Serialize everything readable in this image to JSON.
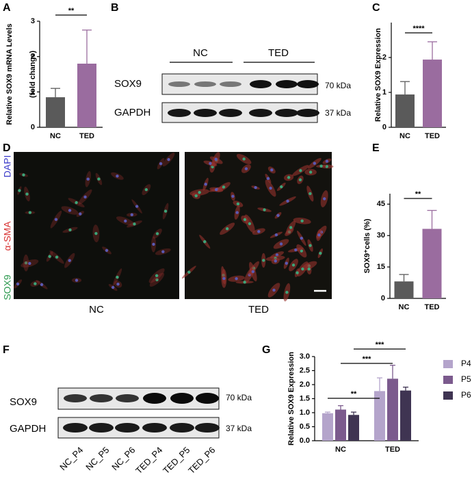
{
  "chart_data": [
    {
      "type": "bar",
      "ylabel": [
        "Relative SOX9 mRNA Levels",
        "(fold change)"
      ],
      "categories": [
        "NC",
        "TED"
      ],
      "values": [
        0.85,
        1.8
      ],
      "errors": [
        0.25,
        0.95
      ],
      "colors": [
        "#5a5a5a",
        "#9a6c9f"
      ],
      "ylim": [
        0,
        3
      ],
      "yticks": [
        0,
        1,
        2,
        3
      ],
      "significance": [
        "**"
      ]
    },
    {
      "type": "bar",
      "ylabel": [
        "Relative SOX9 Expression"
      ],
      "categories": [
        "NC",
        "TED"
      ],
      "values": [
        0.94,
        1.94
      ],
      "errors": [
        0.37,
        0.51
      ],
      "colors": [
        "#5a5a5a",
        "#9a6c9f"
      ],
      "ylim": [
        0,
        3
      ],
      "yticks": [
        0,
        1,
        2
      ],
      "significance": [
        "****"
      ]
    },
    {
      "type": "bar",
      "ylabel": [
        "SOX9⁺cells (%)"
      ],
      "categories": [
        "NC",
        "TED"
      ],
      "values": [
        8.1,
        33.2
      ],
      "errors": [
        3.3,
        8.8
      ],
      "colors": [
        "#5a5a5a",
        "#9a6c9f"
      ],
      "ylim": [
        0,
        50
      ],
      "yticks": [
        0,
        15,
        30,
        45
      ],
      "significance": [
        "**"
      ]
    },
    {
      "type": "grouped-bar",
      "ylabel": [
        "Relative SOX9 Expression"
      ],
      "categories": [
        "NC",
        "TED"
      ],
      "series": [
        {
          "name": "P4",
          "color": "#b4a4cb",
          "values": [
            0.98,
            1.77
          ],
          "errors": [
            0.04,
            0.47
          ]
        },
        {
          "name": "P5",
          "color": "#7b5a8d",
          "values": [
            1.11,
            2.21
          ],
          "errors": [
            0.14,
            0.48
          ]
        },
        {
          "name": "P6",
          "color": "#3f3452",
          "values": [
            0.92,
            1.79
          ],
          "errors": [
            0.1,
            0.12
          ]
        }
      ],
      "ylim": [
        0,
        3
      ],
      "yticks": [
        {
          "value": 0,
          "label": "0.0"
        },
        {
          "value": 0.5,
          "label": "0.5"
        },
        {
          "value": 1,
          "label": "1.0"
        },
        {
          "value": 1.5,
          "label": "1.5"
        },
        {
          "value": 2,
          "label": "2.0"
        },
        {
          "value": 2.5,
          "label": "2.5"
        },
        {
          "value": 3,
          "label": "3.0"
        }
      ],
      "significance": [
        "**",
        "***",
        "***"
      ]
    }
  ],
  "panels": {
    "letters": [
      "A",
      "B",
      "C",
      "D",
      "E",
      "F",
      "G"
    ],
    "blot_b": {
      "groups": [
        "NC",
        "TED"
      ],
      "rows": [
        "SOX9",
        "GAPDH"
      ],
      "sizes": [
        "70 kDa",
        "37 kDa"
      ]
    },
    "image_d": {
      "stains": [
        "DAPI",
        "α-SMA",
        "SOX9"
      ],
      "labels": [
        "NC",
        "TED"
      ]
    },
    "blot_f": {
      "rows": [
        "SOX9",
        "GAPDH"
      ],
      "sizes": [
        "70 kDa",
        "37 kDa"
      ],
      "lanes": [
        "NC_P4",
        "NC_P5",
        "NC_P6",
        "TED_P4",
        "TED_P5",
        "TED_P6"
      ]
    }
  }
}
